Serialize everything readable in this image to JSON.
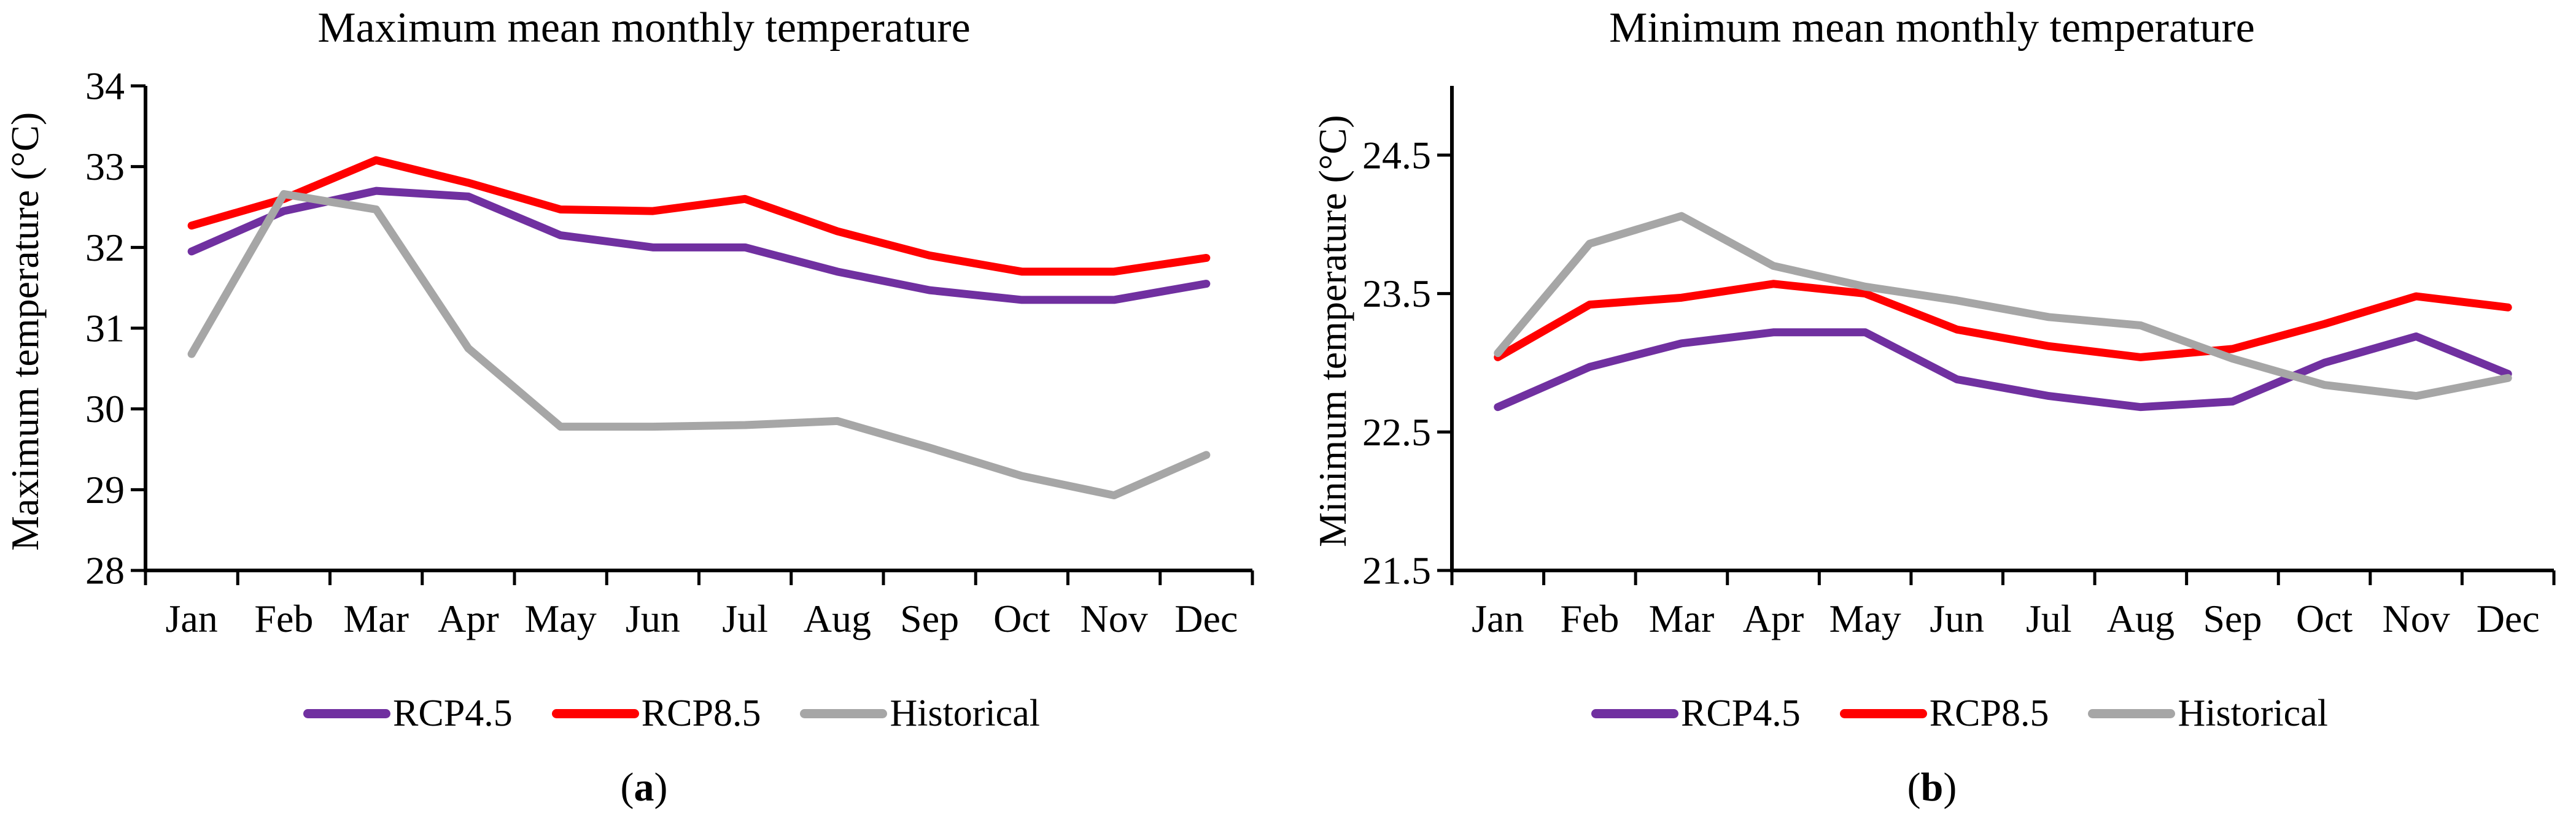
{
  "caption": {
    "open": "(",
    "close": ")"
  },
  "chart_data": [
    {
      "type": "line",
      "title": "Maximum mean monthly temperature",
      "ylabel": "Maximum temperature (°C)",
      "xlabel": "",
      "caption_letter": "a",
      "categories": [
        "Jan",
        "Feb",
        "Mar",
        "Apr",
        "May",
        "Jun",
        "Jul",
        "Aug",
        "Sep",
        "Oct",
        "Nov",
        "Dec"
      ],
      "series": [
        {
          "name": "RCP4.5",
          "color": "#7030A0",
          "values": [
            31.95,
            32.45,
            32.7,
            32.63,
            32.15,
            32.0,
            32.0,
            31.7,
            31.47,
            31.35,
            31.35,
            31.55
          ]
        },
        {
          "name": "RCP8.5",
          "color": "#FF0000",
          "values": [
            32.27,
            32.6,
            33.08,
            32.8,
            32.47,
            32.45,
            32.6,
            32.2,
            31.9,
            31.7,
            31.7,
            31.87
          ]
        },
        {
          "name": "Historical",
          "color": "#A6A6A6",
          "values": [
            30.68,
            32.66,
            32.47,
            30.75,
            29.78,
            29.78,
            29.8,
            29.85,
            29.52,
            29.17,
            28.93,
            29.43
          ]
        }
      ],
      "ylim": [
        28,
        34
      ],
      "yticks": [
        28,
        29,
        30,
        31,
        32,
        33,
        34
      ],
      "ytick_decimals": 0,
      "grid": false,
      "legend_position": "bottom"
    },
    {
      "type": "line",
      "title": "Minimum mean monthly temperature",
      "ylabel": "Minimum temperature (°C)",
      "xlabel": "",
      "caption_letter": "b",
      "categories": [
        "Jan",
        "Feb",
        "Mar",
        "Apr",
        "May",
        "Jun",
        "Jul",
        "Aug",
        "Sep",
        "Oct",
        "Nov",
        "Dec"
      ],
      "series": [
        {
          "name": "RCP4.5",
          "color": "#7030A0",
          "values": [
            22.68,
            22.97,
            23.14,
            23.22,
            23.22,
            22.88,
            22.76,
            22.68,
            22.72,
            23.0,
            23.19,
            22.92
          ]
        },
        {
          "name": "RCP8.5",
          "color": "#FF0000",
          "values": [
            23.04,
            23.42,
            23.47,
            23.57,
            23.5,
            23.24,
            23.12,
            23.04,
            23.1,
            23.28,
            23.48,
            23.4
          ]
        },
        {
          "name": "Historical",
          "color": "#A6A6A6",
          "values": [
            23.07,
            23.86,
            24.06,
            23.7,
            23.55,
            23.45,
            23.33,
            23.27,
            23.03,
            22.84,
            22.76,
            22.89
          ]
        }
      ],
      "ylim": [
        21.5,
        25.0
      ],
      "yticks": [
        21.5,
        22.5,
        23.5,
        24.5
      ],
      "ytick_decimals": 1,
      "grid": false,
      "legend_position": "bottom"
    }
  ]
}
